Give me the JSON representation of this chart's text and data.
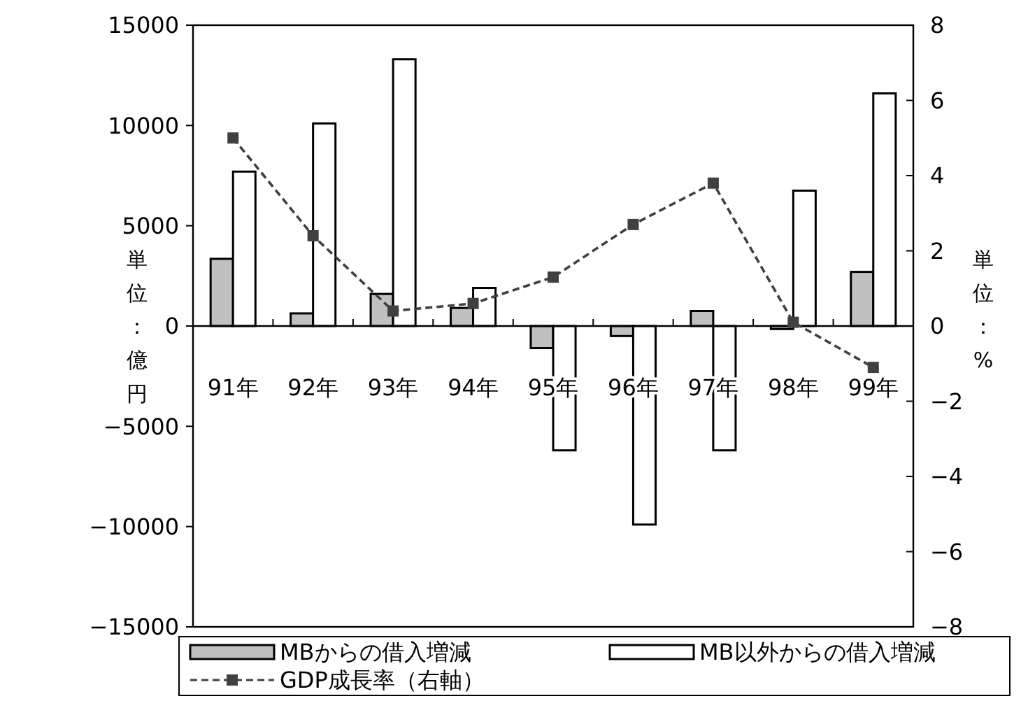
{
  "chart_data": {
    "type": "bar",
    "categories": [
      "91年",
      "92年",
      "93年",
      "94年",
      "95年",
      "96年",
      "97年",
      "98年",
      "99年"
    ],
    "ylabel": "単位：億円",
    "y2label": "単位：%",
    "ylim": [
      -15000,
      15000
    ],
    "yticks": [
      -15000,
      -10000,
      -5000,
      0,
      5000,
      10000,
      15000
    ],
    "y2lim": [
      -8,
      8
    ],
    "y2ticks": [
      -8,
      -6,
      -4,
      -2,
      0,
      2,
      4,
      6,
      8
    ],
    "series": [
      {
        "name": "MBからの借入増減",
        "color": "#c0c0c0",
        "values": [
          3350,
          630,
          1600,
          900,
          -1100,
          -500,
          750,
          -150,
          2700
        ]
      },
      {
        "name": "MB以外からの借入増減",
        "color": "#ffffff",
        "values": [
          7700,
          10100,
          13300,
          1900,
          -6200,
          -9900,
          -6200,
          6750,
          11600
        ]
      },
      {
        "name": "GDP成長率（右軸）",
        "type": "line",
        "axis": "y2",
        "color": "#404040",
        "marker": "square",
        "line_style": "dashed",
        "values": [
          5.0,
          2.4,
          0.4,
          0.6,
          1.3,
          2.7,
          3.8,
          0.1,
          -1.1
        ]
      }
    ],
    "grid": false,
    "legend": "bottom"
  }
}
